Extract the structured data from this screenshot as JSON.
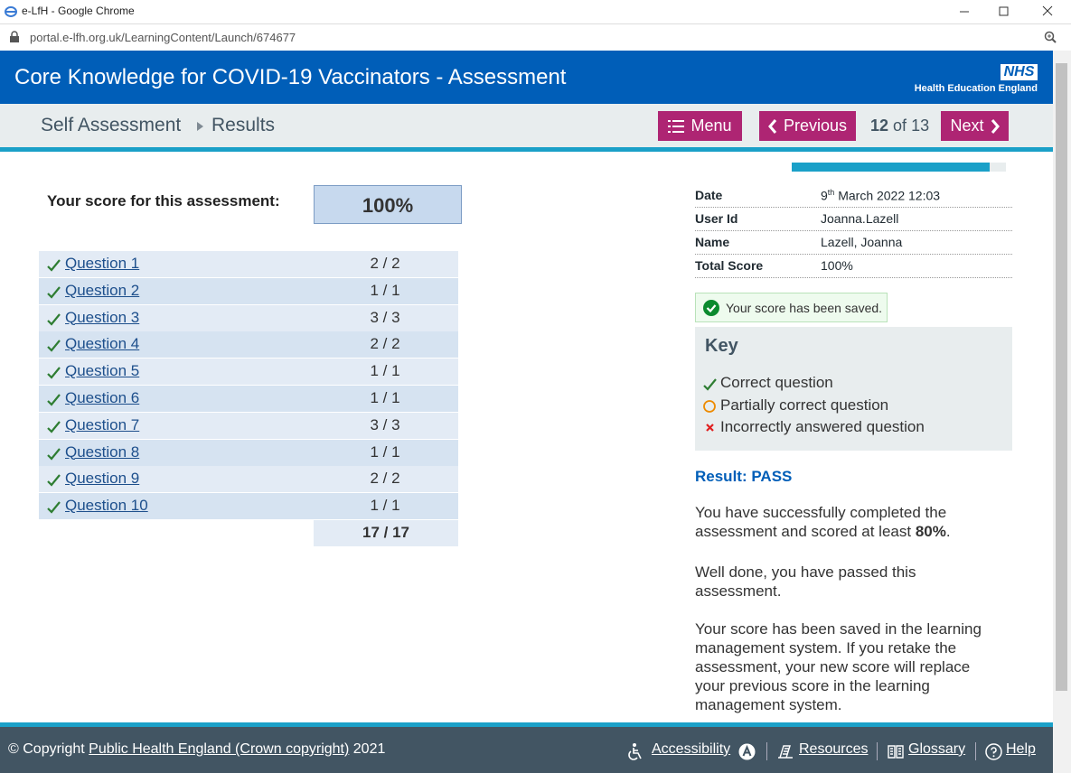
{
  "browser": {
    "window_title": "e-LfH - Google Chrome",
    "url": "portal.e-lfh.org.uk/LearningContent/Launch/674677"
  },
  "header": {
    "title": "Core Knowledge for COVID-19 Vaccinators - Assessment",
    "logo": "NHS",
    "organisation": "Health Education England"
  },
  "nav": {
    "breadcrumb": [
      "Self Assessment",
      "Results"
    ],
    "menu": "Menu",
    "previous": "Previous",
    "page": {
      "current": 12,
      "separator": "of",
      "total": 13
    },
    "next": "Next"
  },
  "score": {
    "label": "Your score for this assessment:",
    "value": "100%"
  },
  "table": {
    "rows": [
      {
        "question": "Question 1",
        "score": "2 / 2"
      },
      {
        "question": "Question 2",
        "score": "1 / 1"
      },
      {
        "question": "Question 3",
        "score": "3 / 3"
      },
      {
        "question": "Question 4",
        "score": "2 / 2"
      },
      {
        "question": "Question 5",
        "score": "1 / 1"
      },
      {
        "question": "Question 6",
        "score": "1 / 1"
      },
      {
        "question": "Question 7",
        "score": "3 / 3"
      },
      {
        "question": "Question 8",
        "score": "1 / 1"
      },
      {
        "question": "Question 9",
        "score": "2 / 2"
      },
      {
        "question": "Question 10",
        "score": "1 / 1"
      }
    ],
    "total": "17 / 17"
  },
  "details": {
    "date": {
      "label": "Date",
      "day": "9",
      "suffix": "th",
      "rest": "March 2022 12:03"
    },
    "rows": [
      {
        "label": "User Id",
        "value": "Joanna.Lazell"
      },
      {
        "label": "Name",
        "value": "Lazell, Joanna"
      },
      {
        "label": "Total Score",
        "value": "100%"
      }
    ]
  },
  "saved_message": "Your score has been saved.",
  "key": {
    "title": "Key",
    "items": [
      "Correct question",
      "Partially correct question",
      "Incorrectly answered question"
    ]
  },
  "result": {
    "heading": "Result: PASS",
    "summary": {
      "text": "You have successfully completed the assessment and scored at least",
      "bold": "80%",
      "end": "."
    },
    "paragraphs": [
      "Well done, you have passed this assessment.",
      "Your score has been saved in the learning management system. If you retake the assessment, your new score will replace your previous score in the learning management system."
    ]
  },
  "footer": {
    "copyright_prefix": "© Copyright",
    "copyright_link": "Public Health England (Crown copyright)",
    "copyright_suffix": "2021",
    "links": [
      "Accessibility",
      "Resources",
      "Glossary",
      "Help"
    ]
  }
}
